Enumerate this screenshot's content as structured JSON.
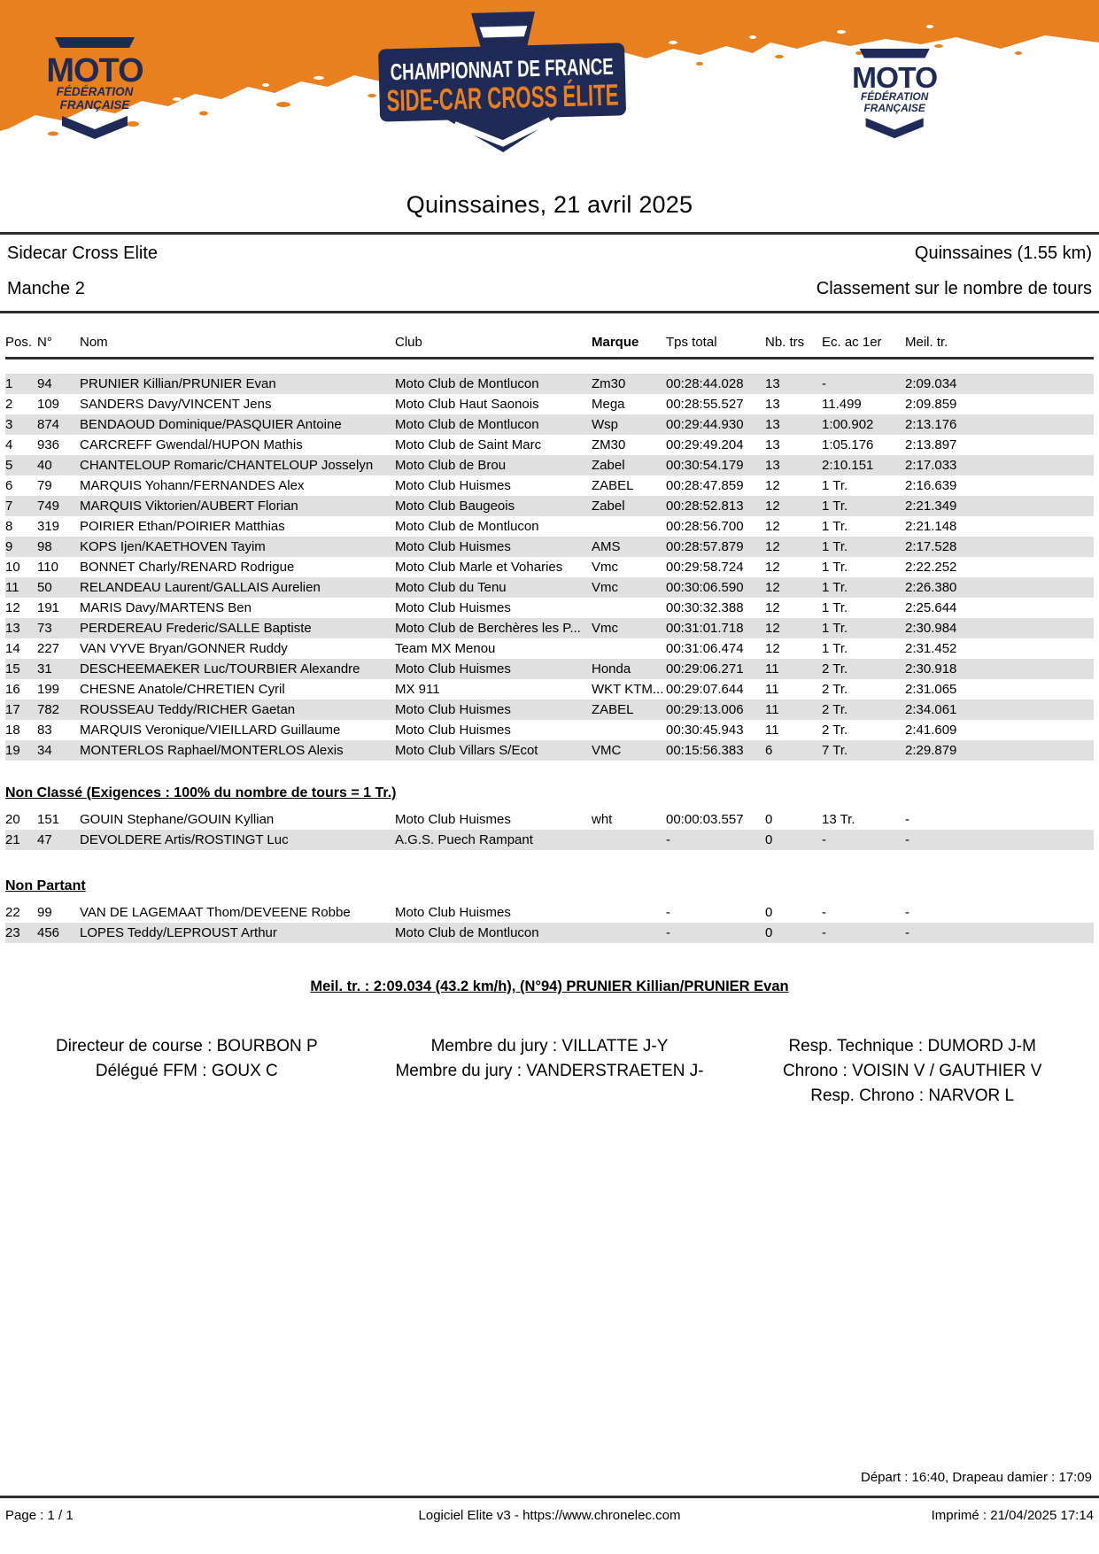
{
  "colors": {
    "orange": "#E8801F",
    "navy": "#1F2A56",
    "row_alt": "#E0E0E0"
  },
  "header": {
    "badge": {
      "line1": "CHAMPIONNAT DE FRANCE",
      "line2": "SIDE-CAR CROSS ÉLITE"
    },
    "ffm_logo": {
      "title": "MOTO",
      "subtitle1": "FÉDÉRATION",
      "subtitle2": "FRANÇAISE"
    }
  },
  "title": "Quinssaines, 21 avril 2025",
  "info": {
    "category": "Sidecar Cross Elite",
    "venue": "Quinssaines (1.55 km)",
    "heat": "Manche 2",
    "classification": "Classement sur le nombre de tours"
  },
  "table": {
    "columns": [
      "Pos.",
      "N°",
      "Nom",
      "Club",
      "Marque",
      "Tps total",
      "Nb. trs",
      "Ec. ac 1er",
      "Meil. tr."
    ],
    "main_rows": [
      {
        "pos": "1",
        "num": "94",
        "name": "PRUNIER Killian/PRUNIER Evan",
        "club": "Moto Club de Montlucon",
        "marque": "Zm30",
        "tps": "00:28:44.028",
        "laps": "13",
        "gap": "-",
        "best": "2:09.034"
      },
      {
        "pos": "2",
        "num": "109",
        "name": "SANDERS Davy/VINCENT Jens",
        "club": "Moto Club Haut Saonois",
        "marque": "Mega",
        "tps": "00:28:55.527",
        "laps": "13",
        "gap": "11.499",
        "best": "2:09.859"
      },
      {
        "pos": "3",
        "num": "874",
        "name": "BENDAOUD Dominique/PASQUIER Antoine",
        "club": "Moto Club de Montlucon",
        "marque": "Wsp",
        "tps": "00:29:44.930",
        "laps": "13",
        "gap": "1:00.902",
        "best": "2:13.176"
      },
      {
        "pos": "4",
        "num": "936",
        "name": "CARCREFF Gwendal/HUPON Mathis",
        "club": "Moto Club de Saint Marc",
        "marque": "ZM30",
        "tps": "00:29:49.204",
        "laps": "13",
        "gap": "1:05.176",
        "best": "2:13.897"
      },
      {
        "pos": "5",
        "num": "40",
        "name": "CHANTELOUP Romaric/CHANTELOUP Josselyn",
        "club": "Moto Club de Brou",
        "marque": "Zabel",
        "tps": "00:30:54.179",
        "laps": "13",
        "gap": "2:10.151",
        "best": "2:17.033"
      },
      {
        "pos": "6",
        "num": "79",
        "name": "MARQUIS Yohann/FERNANDES Alex",
        "club": "Moto Club Huismes",
        "marque": "ZABEL",
        "tps": "00:28:47.859",
        "laps": "12",
        "gap": "1 Tr.",
        "best": "2:16.639"
      },
      {
        "pos": "7",
        "num": "749",
        "name": "MARQUIS Viktorien/AUBERT Florian",
        "club": "Moto Club Baugeois",
        "marque": "Zabel",
        "tps": "00:28:52.813",
        "laps": "12",
        "gap": "1 Tr.",
        "best": "2:21.349"
      },
      {
        "pos": "8",
        "num": "319",
        "name": "POIRIER Ethan/POIRIER Matthias",
        "club": "Moto Club de Montlucon",
        "marque": "",
        "tps": "00:28:56.700",
        "laps": "12",
        "gap": "1 Tr.",
        "best": "2:21.148"
      },
      {
        "pos": "9",
        "num": "98",
        "name": "KOPS Ijen/KAETHOVEN Tayim",
        "club": "Moto Club Huismes",
        "marque": "AMS",
        "tps": "00:28:57.879",
        "laps": "12",
        "gap": "1 Tr.",
        "best": "2:17.528"
      },
      {
        "pos": "10",
        "num": "110",
        "name": "BONNET Charly/RENARD Rodrigue",
        "club": "Moto Club Marle et Voharies",
        "marque": "Vmc",
        "tps": "00:29:58.724",
        "laps": "12",
        "gap": "1 Tr.",
        "best": "2:22.252"
      },
      {
        "pos": "11",
        "num": "50",
        "name": "RELANDEAU Laurent/GALLAIS Aurelien",
        "club": "Moto Club du Tenu",
        "marque": "Vmc",
        "tps": "00:30:06.590",
        "laps": "12",
        "gap": "1 Tr.",
        "best": "2:26.380"
      },
      {
        "pos": "12",
        "num": "191",
        "name": "MARIS Davy/MARTENS Ben",
        "club": "Moto Club Huismes",
        "marque": "",
        "tps": "00:30:32.388",
        "laps": "12",
        "gap": "1 Tr.",
        "best": "2:25.644"
      },
      {
        "pos": "13",
        "num": "73",
        "name": "PERDEREAU Frederic/SALLE Baptiste",
        "club": "Moto Club de Berchères les P...",
        "marque": "Vmc",
        "tps": "00:31:01.718",
        "laps": "12",
        "gap": "1 Tr.",
        "best": "2:30.984"
      },
      {
        "pos": "14",
        "num": "227",
        "name": "VAN VYVE Bryan/GONNER Ruddy",
        "club": "Team MX Menou",
        "marque": "",
        "tps": "00:31:06.474",
        "laps": "12",
        "gap": "1 Tr.",
        "best": "2:31.452"
      },
      {
        "pos": "15",
        "num": "31",
        "name": "DESCHEEMAEKER Luc/TOURBIER Alexandre",
        "club": "Moto Club Huismes",
        "marque": "Honda",
        "tps": "00:29:06.271",
        "laps": "11",
        "gap": "2 Tr.",
        "best": "2:30.918"
      },
      {
        "pos": "16",
        "num": "199",
        "name": "CHESNE Anatole/CHRETIEN Cyril",
        "club": "MX 911",
        "marque": "WKT KTM...",
        "tps": "00:29:07.644",
        "laps": "11",
        "gap": "2 Tr.",
        "best": "2:31.065"
      },
      {
        "pos": "17",
        "num": "782",
        "name": "ROUSSEAU Teddy/RICHER Gaetan",
        "club": "Moto Club Huismes",
        "marque": "ZABEL",
        "tps": "00:29:13.006",
        "laps": "11",
        "gap": "2 Tr.",
        "best": "2:34.061"
      },
      {
        "pos": "18",
        "num": "83",
        "name": "MARQUIS Veronique/VIEILLARD Guillaume",
        "club": "Moto Club Huismes",
        "marque": "",
        "tps": "00:30:45.943",
        "laps": "11",
        "gap": "2 Tr.",
        "best": "2:41.609"
      },
      {
        "pos": "19",
        "num": "34",
        "name": "MONTERLOS Raphael/MONTERLOS Alexis",
        "club": "Moto Club Villars S/Ecot",
        "marque": "VMC",
        "tps": "00:15:56.383",
        "laps": "6",
        "gap": "7 Tr.",
        "best": "2:29.879"
      }
    ],
    "sections": [
      {
        "label": "Non Classé (Exigences : 100% du nombre de tours = 1 Tr.)",
        "rows": [
          {
            "pos": "20",
            "num": "151",
            "name": "GOUIN Stephane/GOUIN Kyllian",
            "club": "Moto Club Huismes",
            "marque": "wht",
            "tps": "00:00:03.557",
            "laps": "0",
            "gap": "13 Tr.",
            "best": "-"
          },
          {
            "pos": "21",
            "num": "47",
            "name": "DEVOLDERE Artis/ROSTINGT Luc",
            "club": "A.G.S. Puech Rampant",
            "marque": "",
            "tps": "-",
            "laps": "0",
            "gap": "-",
            "best": "-"
          }
        ]
      },
      {
        "label": "Non Partant",
        "rows": [
          {
            "pos": "22",
            "num": "99",
            "name": "VAN DE LAGEMAAT Thom/DEVEENE Robbe",
            "club": "Moto Club Huismes",
            "marque": "",
            "tps": "-",
            "laps": "0",
            "gap": "-",
            "best": "-"
          },
          {
            "pos": "23",
            "num": "456",
            "name": "LOPES Teddy/LEPROUST Arthur",
            "club": "Moto Club de Montlucon",
            "marque": "",
            "tps": "-",
            "laps": "0",
            "gap": "-",
            "best": "-"
          }
        ]
      }
    ]
  },
  "best_lap": "Meil. tr. : 2:09.034 (43.2 km/h), (N°94) PRUNIER Killian/PRUNIER Evan",
  "officials": {
    "col1": [
      "Directeur de course : BOURBON P",
      "Délégué FFM : GOUX C"
    ],
    "col2": [
      "Membre du jury : VILLATTE J-Y",
      "Membre du jury : VANDERSTRAETEN J-"
    ],
    "col3": [
      "Resp. Technique : DUMORD J-M",
      "Chrono : VOISIN V / GAUTHIER V",
      "Resp. Chrono : NARVOR L"
    ]
  },
  "footer": {
    "schedule": "Départ : 16:40, Drapeau damier : 17:09",
    "page": "Page : 1 / 1",
    "software": "Logiciel Elite v3 - https://www.chronelec.com",
    "printed": "Imprimé : 21/04/2025 17:14"
  }
}
